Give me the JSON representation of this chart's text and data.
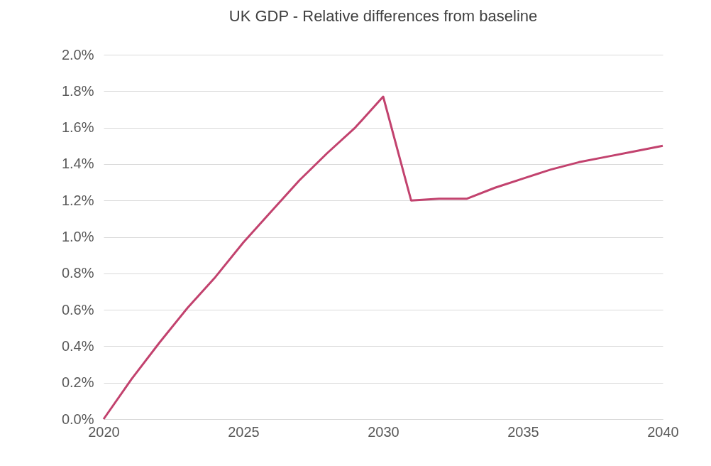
{
  "chart_data": {
    "type": "line",
    "title": "UK GDP - Relative differences from baseline",
    "x": [
      2020,
      2021,
      2022,
      2023,
      2024,
      2025,
      2026,
      2027,
      2028,
      2029,
      2030,
      2031,
      2032,
      2033,
      2034,
      2035,
      2036,
      2037,
      2038,
      2039,
      2040
    ],
    "series": [
      {
        "color": "#c2426e",
        "values": [
          0,
          0.22,
          0.42,
          0.61,
          0.78,
          0.97,
          1.14,
          1.31,
          1.46,
          1.6,
          1.77,
          1.2,
          1.21,
          1.21,
          1.27,
          1.32,
          1.37,
          1.41,
          1.44,
          1.47,
          1.5
        ]
      }
    ],
    "xlim": [
      2020,
      2040
    ],
    "xticks": [
      2020,
      2025,
      2030,
      2035,
      2040
    ],
    "ylim": [
      0,
      2
    ],
    "yticks": [
      {
        "value": 0,
        "label": "0.0%"
      },
      {
        "value": 0.2,
        "label": "0.2%"
      },
      {
        "value": 0.4,
        "label": "0.4%"
      },
      {
        "value": 0.6,
        "label": "0.6%"
      },
      {
        "value": 0.8,
        "label": "0.8%"
      },
      {
        "value": 1,
        "label": "1.0%"
      },
      {
        "value": 1.2,
        "label": "1.2%"
      },
      {
        "value": 1.4,
        "label": "1.4%"
      },
      {
        "value": 1.6,
        "label": "1.6%"
      },
      {
        "value": 1.8,
        "label": "1.8%"
      },
      {
        "value": 2,
        "label": "2.0%"
      }
    ],
    "grid": "y",
    "marker": "none",
    "line_style": "solid",
    "legend": false
  }
}
